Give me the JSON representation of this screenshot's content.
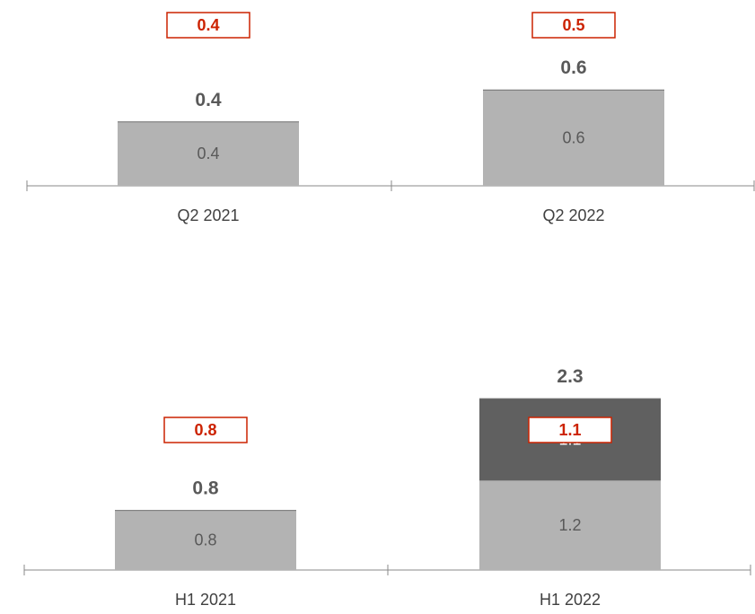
{
  "chart_data": [
    {
      "type": "bar",
      "stacked": true,
      "categories": [
        "Q2 2021",
        "Q2 2022"
      ],
      "series": [
        {
          "values": [
            0.4,
            0.6
          ],
          "color": "#b3b3b3",
          "label_color": "#595959"
        }
      ],
      "totals": [
        0.4,
        0.6
      ],
      "boxed_values": [
        0.4,
        0.5
      ],
      "total_labels": [
        "0.4",
        "0.6"
      ],
      "segment_labels": [
        [
          "0.4",
          "0.6"
        ]
      ],
      "boxed_labels": [
        "0.4",
        "0.5"
      ],
      "ylim": [
        0,
        0.8
      ],
      "grid": false,
      "accent_color": "#cc2200"
    },
    {
      "type": "bar",
      "stacked": true,
      "categories": [
        "H1 2021",
        "H1 2022"
      ],
      "series": [
        {
          "values": [
            0.8,
            1.2
          ],
          "color": "#b3b3b3",
          "label_color": "#595959"
        },
        {
          "values": [
            0,
            1.1
          ],
          "color": "#606060",
          "label_color": "#ffffff"
        }
      ],
      "totals": [
        0.8,
        2.3
      ],
      "boxed_values": [
        0.8,
        1.1
      ],
      "total_labels": [
        "0.8",
        "2.3"
      ],
      "segment_labels": [
        [
          "0.8",
          "1.2"
        ],
        [
          "",
          "1.1"
        ]
      ],
      "boxed_labels": [
        "0.8",
        "1.1"
      ],
      "ylim": [
        0,
        2.3
      ],
      "grid": false,
      "accent_color": "#cc2200"
    }
  ]
}
